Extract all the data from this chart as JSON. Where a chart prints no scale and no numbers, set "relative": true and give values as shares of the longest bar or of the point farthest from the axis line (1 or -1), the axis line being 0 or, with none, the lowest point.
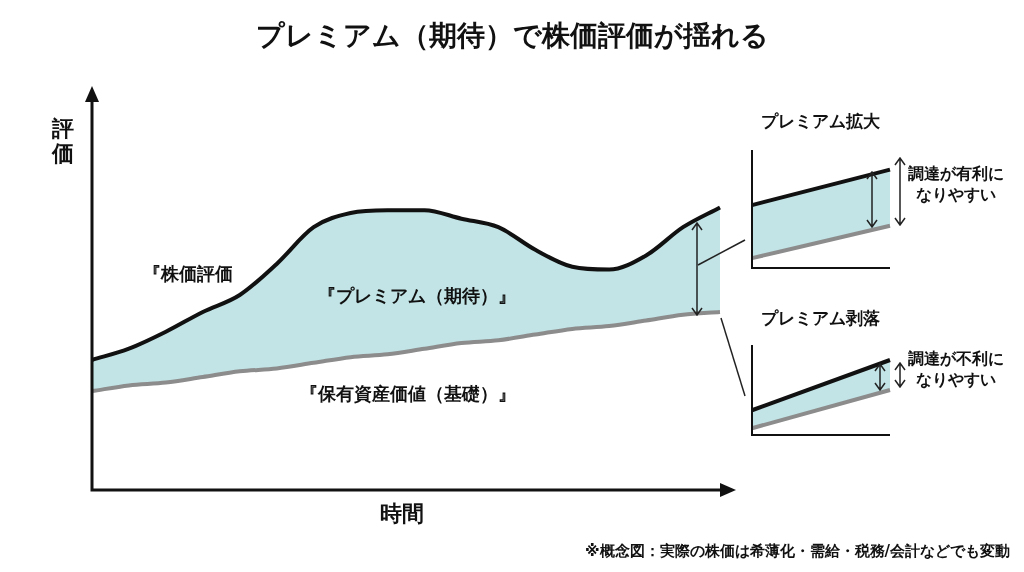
{
  "chart_data": [
    {
      "type": "line",
      "title": "プレミアム（期待）で株価評価が揺れる",
      "xlabel": "時間",
      "ylabel": "評価",
      "relative": true,
      "categories": [
        null,
        null,
        null,
        null,
        null,
        null,
        null,
        null,
        null,
        null,
        null,
        null,
        null,
        null,
        null,
        null,
        null,
        null
      ],
      "series": [
        {
          "name": "『保有資産価値（基礎）』",
          "color": "#8c8c8c",
          "values": [
            0.35,
            0.37,
            0.38,
            0.4,
            0.42,
            0.43,
            0.45,
            0.47,
            0.48,
            0.5,
            0.52,
            0.53,
            0.55,
            0.57,
            0.58,
            0.6,
            0.62,
            0.63
          ]
        },
        {
          "name": "『株価評価",
          "color": "#111111",
          "values": [
            0.46,
            0.5,
            0.56,
            0.63,
            0.69,
            0.8,
            0.93,
            0.98,
            0.99,
            0.99,
            0.96,
            0.93,
            0.85,
            0.79,
            0.78,
            0.83,
            0.93,
            1.0
          ],
          "lower": [
            0.35,
            0.37,
            0.38,
            0.4,
            0.42,
            0.43,
            0.45,
            0.47,
            0.48,
            0.5,
            0.52,
            0.53,
            0.55,
            0.57,
            0.58,
            0.6,
            0.62,
            0.63
          ],
          "upper": [
            0.46,
            0.5,
            0.56,
            0.63,
            0.69,
            0.8,
            0.93,
            0.98,
            0.99,
            0.99,
            0.96,
            0.93,
            0.85,
            0.79,
            0.78,
            0.83,
            0.93,
            1.0
          ]
        }
      ],
      "annotations": [
        "『プレミアム（期待）』",
        "※概念図：実際の株価は希薄化・需給・税務/会計などでも変動"
      ]
    },
    {
      "type": "line",
      "title": "プレミアム拡大",
      "relative": true,
      "categories": [
        null,
        null
      ],
      "series": [
        {
          "color": "#8c8c8c",
          "values": [
            0.1,
            0.43
          ]
        },
        {
          "color": "#111111",
          "values": [
            0.64,
            1.0
          ],
          "lower": [
            0.1,
            0.43
          ],
          "upper": [
            0.64,
            1.0
          ]
        }
      ],
      "annotations": [
        "調達が有利になりやすい"
      ]
    },
    {
      "type": "line",
      "title": "プレミアム剥落",
      "relative": true,
      "categories": [
        null,
        null
      ],
      "series": [
        {
          "color": "#8c8c8c",
          "values": [
            0.09,
            0.6
          ]
        },
        {
          "color": "#111111",
          "values": [
            0.33,
            1.0
          ],
          "lower": [
            0.09,
            0.6
          ],
          "upper": [
            0.33,
            1.0
          ]
        }
      ],
      "annotations": [
        "調達が不利になりやすい"
      ]
    }
  ]
}
